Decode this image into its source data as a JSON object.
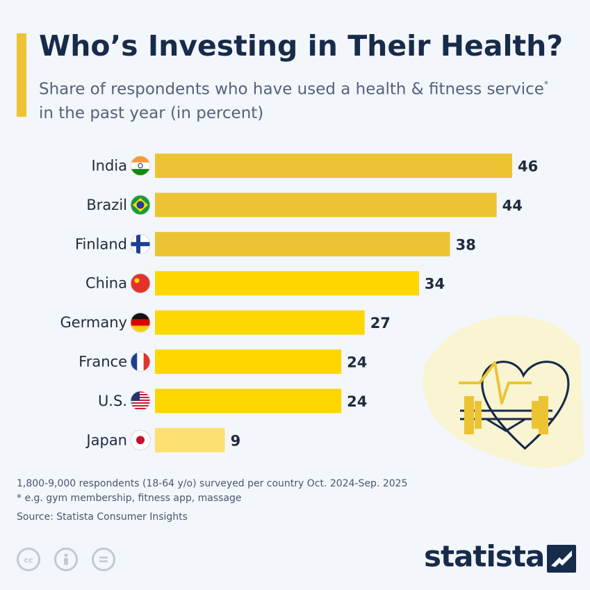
{
  "header": {
    "title": "Who’s Investing in Their Health?",
    "subtitle_main": "Share of respondents who have used a health & fitness service",
    "subtitle_star": "*",
    "subtitle_tail": " in the past year (in percent)"
  },
  "chart_data": {
    "type": "bar",
    "orientation": "horizontal",
    "title": "Who’s Investing in Their Health?",
    "subtitle": "Share of respondents who have used a health & fitness service* in the past year (in percent)",
    "xlabel": "",
    "ylabel": "",
    "xlim": [
      0,
      46
    ],
    "categories": [
      "India",
      "Brazil",
      "Finland",
      "China",
      "Germany",
      "France",
      "U.S.",
      "Japan"
    ],
    "values": [
      46,
      44,
      38,
      34,
      27,
      24,
      24,
      9
    ],
    "value_labels": [
      "46",
      "44",
      "38",
      "34",
      "27",
      "24",
      "24",
      "9"
    ],
    "bar_colors": [
      "#ecc433",
      "#ecc433",
      "#ecc433",
      "#fed600",
      "#fed600",
      "#fed600",
      "#fed600",
      "#fde070"
    ],
    "grid": false,
    "legend": "none"
  },
  "footer": {
    "note1": "1,800-9,000 respondents (18-64 y/o) surveyed per country Oct. 2024-Sep. 2025",
    "note2": "* e.g. gym membership, fitness app, massage",
    "source": "Source: Statista Consumer Insights",
    "brand": "statista"
  },
  "icons": {
    "illustration": "heart-dumbbell-icon",
    "license": [
      "creative-commons-icon",
      "attribution-icon",
      "no-derivatives-icon"
    ]
  }
}
